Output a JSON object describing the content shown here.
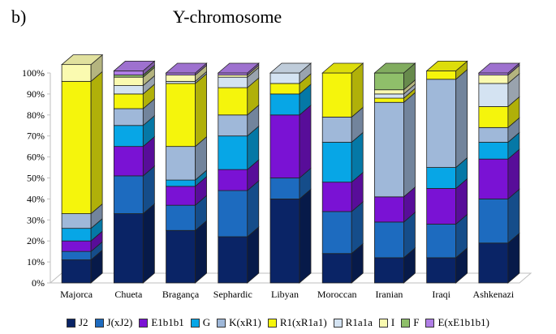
{
  "panel_label": "b)",
  "chart_data": {
    "type": "bar",
    "stacked": true,
    "three_d": true,
    "title": "Y-chromosome",
    "xlabel": "",
    "ylabel": "",
    "ylim": [
      0,
      100
    ],
    "yticks": [
      "0%",
      "10%",
      "20%",
      "30%",
      "40%",
      "50%",
      "60%",
      "70%",
      "80%",
      "90%",
      "100%"
    ],
    "grid": false,
    "legend_position": "bottom",
    "categories": [
      "Majorca",
      "Chueta",
      "Bragança",
      "Sephardic",
      "Libyan",
      "Moroccan",
      "Iranian",
      "Iraqi",
      "Ashkenazi"
    ],
    "series": [
      {
        "name": "J2",
        "color": "#0a2466",
        "values": [
          11,
          33,
          25,
          22,
          40,
          14,
          12,
          12,
          19
        ]
      },
      {
        "name": "J(xJ2)",
        "color": "#1d6bbf",
        "values": [
          4,
          18,
          12,
          22,
          10,
          20,
          17,
          16,
          21
        ]
      },
      {
        "name": "E1b1b1",
        "color": "#7a12d4",
        "values": [
          5,
          14,
          9,
          10,
          30,
          14,
          12,
          17,
          19
        ]
      },
      {
        "name": "G",
        "color": "#07a6e6",
        "values": [
          6,
          10,
          3,
          16,
          10,
          19,
          0,
          10,
          8
        ]
      },
      {
        "name": "K(xR1)",
        "color": "#9fb8d9",
        "values": [
          7,
          8,
          16,
          10,
          0,
          12,
          45,
          42,
          7
        ]
      },
      {
        "name": "R1(xR1a1)",
        "color": "#f5f50c",
        "values": [
          63,
          7,
          30,
          13,
          5,
          21,
          2,
          4,
          10
        ]
      },
      {
        "name": "R1a1a",
        "color": "#d4e3f2",
        "values": [
          0,
          4,
          1,
          5,
          5,
          0,
          2,
          0,
          11
        ]
      },
      {
        "name": "I",
        "color": "#fafab0",
        "values": [
          8,
          4,
          3,
          1,
          0,
          0,
          2,
          0,
          4
        ]
      },
      {
        "name": "F",
        "color": "#8fbf6a",
        "values": [
          0,
          1,
          0,
          0,
          0,
          0,
          8,
          0,
          0
        ]
      },
      {
        "name": "E(xE1b1b1)",
        "color": "#b07ee6",
        "values": [
          0,
          2,
          1,
          1,
          0,
          0,
          0,
          0,
          1
        ]
      }
    ]
  }
}
